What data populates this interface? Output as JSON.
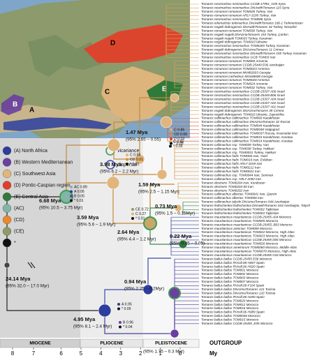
{
  "map": {
    "labels": [
      "A",
      "B",
      "C",
      "D",
      "E"
    ]
  },
  "legend": {
    "areas": [
      "(A) North Africa",
      "(B) Western Mediterranean",
      "(C) Southwest Asia",
      "(D) Pontic-Caspian region",
      "(E) Central Asia",
      "(AC)",
      "(CD)",
      "(CE)",
      "*"
    ],
    "events": [
      "vicariance",
      "dispersal"
    ]
  },
  "nodes": [
    {
      "age": "24.14 Mya",
      "hpd": "(95% 32.0 – 17.0 Myr)"
    },
    {
      "age": "6.68 Mya",
      "hpd": "(95% 10.5 – 3.75 Myr)"
    },
    {
      "age": "4.95 Mya",
      "hpd": "(95% 8.1 – 2.4 Myr)"
    },
    {
      "age": "3.59 Mya",
      "hpd": "(95% 5.6 – 1.9 Myr)"
    },
    {
      "age": "3.98 Mya",
      "hpd": "(95% 6.2 – 2.2 Myr)"
    },
    {
      "age": "2.64 Mya",
      "hpd": "(95% 4.4 – 1.2 Myr)"
    },
    {
      "age": "1.47 Mya",
      "hpd": "(95% 2.65 – 0.55)"
    },
    {
      "age": "1.59 Mya",
      "hpd": "(95% 2.5 – 1.15 Myr)"
    },
    {
      "age": "0.73 Mya",
      "hpd": "(95% 1.5 – 0.15Myr)"
    },
    {
      "age": "0.22 Mya",
      "hpd": "(95% 0.45 – 0.05)"
    },
    {
      "age": "0.94 Mya",
      "hpd": "(95% 2.25 – 0.2Myr)"
    },
    {
      "age": "0.91 Mya",
      "hpd": "(95% 1.75 – 0.3 Myr)"
    }
  ],
  "probabilities": [
    [
      "AC 0.89",
      "A 0.05",
      "B 0.05",
      "* 0.01"
    ],
    [
      "C 0.95",
      "* 0.05"
    ],
    [
      "C 0.86",
      "CD 0.06",
      "D 0.03",
      "* 0.05"
    ],
    [
      "C 0.98",
      "CD 0.01",
      "* 0.01"
    ],
    [
      "CE 0.72",
      "C 0.27",
      "* 0.01"
    ],
    [
      "A 0.95",
      "* 0.05"
    ],
    [
      "B 0.96",
      "* 0.04"
    ]
  ],
  "tips": [
    "Tomares nesimachus nesimachus CCDB-17951_G05 Syria",
    "Tomares nesimachus nesimachus DNAwithTomares 115 Syria",
    "Tomares romanovi romanovi TOM028 Turkey, Van",
    "Tomares romanovi romanovi ARLY-3190 Turkey, Van",
    "Tomares nesimachus nesimachus TOM086 Syria",
    "Tomares telemachus telemachus DNAwithTomares 186-1 Turkmenistan",
    "Tomares nogelii dobrogensis DNAwithTomares 34 Turkey, Nevşehir",
    "Tomares romanovi romanovi TOM030 Turkey, Van",
    "Tomares nogelii nogelii DNAzmaTomares 154 Turkey, Çankırı",
    "Tomares nogelii nogelii TOM033 Turkey, Karaman",
    "Tomares nogelii dobrogensis TOM010 Ukraine",
    "Tomares nesimachus nesimachus TOM0265 Turkey, Karaman",
    "Tomares nogelii dobrogensis DNAzmaTomares 11 Crimea",
    "Tomares nesimachus nesimachus DNAwithTomares 155 Turkey, Karaman",
    "Tomares nesimachus nesimachus GCB-TOM03 Iran",
    "Tomares romanovi romanovi TOM069 Armenia",
    "Tomares romanovi romanovi CCDB-25449 E06 Azerbaijan",
    "Tomares romanovi romanovi TOM0023 Armenia",
    "Tomares romanovi romanovi MN482603 Georgia",
    "Tomares romanovi cachetinus MN448608 Georgia",
    "Tomares romanovi romanovi TOM0028 Armenia",
    "Tomares romanovi romanovi TOM024 Armenia",
    "Tomares romanovi romanovi TOM032 Turkey, Van",
    "Tomares nesimachus nesimachus CCDB-23337 A06 Israel",
    "Tomares nesimachus nesimachus CCDB-25449 B06 Israel",
    "Tomares nesimachus nesimachus CCDB-23337 A04 Israel",
    "Tomares nesimachus nesimachus CCDB-23337 A02 Israel",
    "Tomares nesimachus nesimachus CCDB-23337 A01 Israel",
    "Tomares nogelii dobrogensis DNAzmaTomares 49 Crimea",
    "Tomares nogelii dobrogensis TOM016 Ukraine, Zaporizhia",
    "Tomares callimachus callimachus TOM060 Kazakhstan",
    "Tomares callimachus callimachus DNAzmaTomares 32 Russia",
    "Tomares callimachus callimachus TOM044 Kazakhstan",
    "Tomares callimachus callimachus TOM0048 Volgograd",
    "Tomares callimachus callimachus TOM0037 Russia, Krasnodar krai",
    "Tomares callimachus callimachus TOM015 Kazakhstan, Karatau",
    "Tomares callimachus callimachus TOM014 Kazakhstan, Karatau",
    "Tomares callimachus ssp. TOM039 Turkey, Van",
    "Tomares callimachus ssp. TOM038 Turkey, Hakkari",
    "Tomares callimachus ssp. TOM0031 Turkey, Hakkari",
    "Tomares callimachus hafis TOM006 Iran, Yazd",
    "Tomares callimachus hafis TOM019 Iran, Esfahan",
    "Tomares callimachus hafis ARLY-3159 Iran",
    "Tomares callimachus hafis TOM0212 Iran",
    "Tomares callimachus hafis TOM0021 Iran",
    "Tomares callimachus ssp. TOM0044 Iran, Semnan",
    "Tomares callimachus ssp. ARLY-2092 Iran",
    "Tomares desinens TOM0204 Iran, Kordestan",
    "Tomares desinens TOM0203-00 Iran",
    "Tomares desinens TOM0202 Iran",
    "Tomares callimachus albertus TOM0041 Iran, Qazvin",
    "Tomares callimachus albertus TOM008 Iran",
    "Tomares callimachus talyshi DNAzmaTomares 044 Azerbaijan",
    "Tomares fedtschenkoi fedtschenkoi DNAwithTomares 043 Azerbaijan, Talysh",
    "Tomares fedtschenkoi fedtschenkoi TOM002 Tajikistan",
    "Tomares fedtschenkoi fedtschenkoi TOM003 Tajikistan",
    "Tomares mauritanicus mauritanicus CCDB-25455 A04 Morocco",
    "Tomares mauritanicus mauritanicus TOM005 Morocco",
    "Tomares mauritanicus mauritanicus CCDB-25455_B03 Morocco",
    "Tomares mauritanicus antonius TOM009 Morocco",
    "Tomares mauritanicus mauritanicus TOM022 Morocco, High Atlas",
    "Tomares mauritanicus mauritanicus TOM023 Morocco, High Atlas",
    "Tomares mauritanicus mauritanicus CCDB-25455 D06 Morocco",
    "Tomares mauritanicus mauritanicus TOM026 Morocco",
    "Tomares mauritanicus amelnorum TOM0060 Morocco, Middle Atlas",
    "Tomares mauritanicus mauritanicus TOM0070 Morocco, High Atlas",
    "Tomares mauritanicus mauritanicus CCDB-25455 C04 Morocco",
    "Tomares ballus ballus CCDB-25455 E06 Morocco",
    "Tomares ballus ballus RVcoll.08-H607 Spain",
    "Tomares ballus ballus RVcoll.06-H020 Spain",
    "Tomares ballus ballus TOM001 Morocco",
    "Tomares ballus ballus TOM002 Morocco",
    "Tomares ballus ballus TOM003 Morocco",
    "Tomares ballus ballus TOM007 Morocco",
    "Tomares ballus ballus RVcoll.09-F104 Spain",
    "Tomares ballus ballus DNAzmaTomares 121 Tunisia",
    "Tomares ballus ballus DNAzmaTomares 120 Tunisia",
    "Tomares ballus ballus RVcoll.06-H200 Spain",
    "Tomares ballus ballus TOM020 Morocco",
    "Tomares ballus ballus TOM012 Morocco",
    "Tomares ballus ballus TOM016 Morocco",
    "Tomares ballus ballus RVcoll.06-H089 Spain",
    "Tomares ballus ballus TOM0046 Morocco",
    "Tomares ballus ballus TOM015 Morocco",
    "Tomares ballus ballus CCDB-25455_E05 Morocco"
  ],
  "outgroup": "OUTGROUP",
  "axis": {
    "epochs": [
      "MIOCENE",
      "PLIOCENE",
      "PLEISTOCENE"
    ],
    "ticks": [
      8,
      7,
      6,
      5,
      4,
      3,
      2,
      1,
      0
    ],
    "unit": "My"
  }
}
